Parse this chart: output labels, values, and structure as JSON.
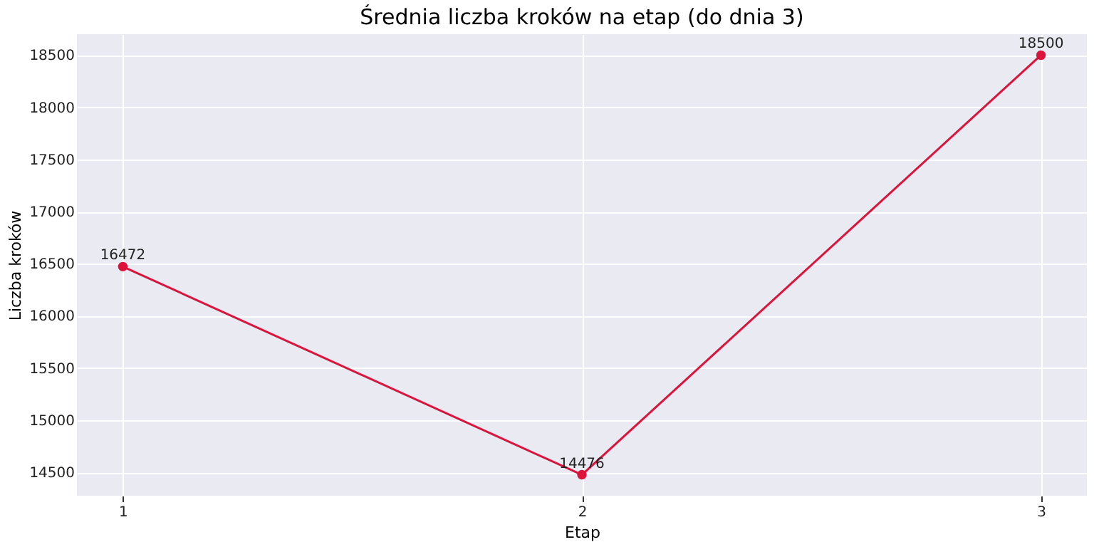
{
  "chart_data": {
    "type": "line",
    "title": "Średnia liczba kroków na etap (do dnia 3)",
    "xlabel": "Etap",
    "ylabel": "Liczba kroków",
    "x": [
      1,
      2,
      3
    ],
    "series": [
      {
        "color": "#dc143c",
        "values": [
          16472,
          14476,
          18500
        ]
      }
    ],
    "xlim": [
      0.9,
      3.1
    ],
    "xticks": [
      1,
      2,
      3
    ],
    "ylim": [
      14275,
      18701
    ],
    "yticks": [
      14500,
      15000,
      15500,
      16000,
      16500,
      17000,
      17500,
      18000,
      18500
    ],
    "grid": true,
    "marker": "circle",
    "line_style": "solid",
    "data_labels": true
  }
}
